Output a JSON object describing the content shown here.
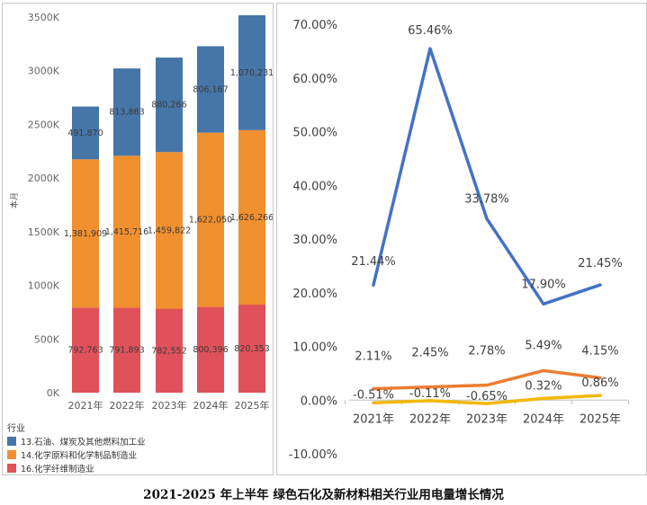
{
  "caption": "2021-2025 年上半年 绿色石化及新材料相关行业用电量增长情况",
  "chart_data": [
    {
      "type": "bar",
      "stacked": true,
      "categories": [
        "2021年",
        "2022年",
        "2023年",
        "2024年",
        "2025年"
      ],
      "ylabel": "本月",
      "ylim": [
        0,
        3500000
      ],
      "yticks": [
        "0K",
        "500K",
        "1000K",
        "1500K",
        "2000K",
        "2500K",
        "3000K",
        "3500K"
      ],
      "legend_title": "行业",
      "legend_position": "bottom-left",
      "series": [
        {
          "name": "16.化学纤维制造业",
          "color": "#e0525a",
          "values": [
            792763,
            791893,
            782552,
            800396,
            820353
          ],
          "labels": [
            "792,763",
            "791,893",
            "782,552",
            "800,396",
            "820,353"
          ]
        },
        {
          "name": "14.化学原料和化学制品制造业",
          "color": "#f1902e",
          "values": [
            1381909,
            1415716,
            1459822,
            1622050,
            1626266
          ],
          "labels": [
            "1,381,909",
            "1,415,716",
            "1,459,822",
            "1,622,050",
            "1,626,266"
          ]
        },
        {
          "name": "13.石油、煤炭及其他燃料加工业",
          "color": "#4675a8",
          "values": [
            491870,
            813863,
            880266,
            806167,
            1070231
          ],
          "labels": [
            "491,870",
            "813,863",
            "880,266",
            "806,167",
            "1,070,231"
          ]
        }
      ]
    },
    {
      "type": "line",
      "categories": [
        "2021年",
        "2022年",
        "2023年",
        "2024年",
        "2025年"
      ],
      "ylim": [
        -10,
        70
      ],
      "yticks": [
        "-10.00%",
        "0.00%",
        "10.00%",
        "20.00%",
        "30.00%",
        "40.00%",
        "50.00%",
        "60.00%",
        "70.00%"
      ],
      "grid": false,
      "series": [
        {
          "color": "#4472c4",
          "values": [
            21.44,
            65.46,
            33.78,
            17.9,
            21.45
          ],
          "labels": [
            "21.44%",
            "65.46%",
            "33.78%",
            "17.90%",
            "21.45%"
          ]
        },
        {
          "color": "#ed7d31",
          "values": [
            2.11,
            2.45,
            2.78,
            5.49,
            4.15
          ],
          "labels": [
            "2.11%",
            "2.45%",
            "2.78%",
            "5.49%",
            "4.15%"
          ]
        },
        {
          "color": "#f2b800",
          "values": [
            -0.51,
            -0.11,
            -0.65,
            0.32,
            0.86
          ],
          "labels": [
            "-0.51%",
            "-0.11%",
            "-0.65%",
            "0.32%",
            "0.86%"
          ]
        }
      ]
    }
  ]
}
